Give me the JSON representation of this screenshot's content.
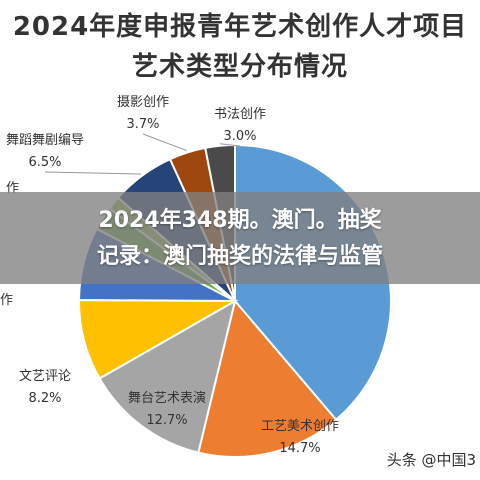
{
  "chart_data": {
    "type": "pie",
    "title": "2024年度申报青年艺术创作人才项目",
    "subtitle": "艺术类型分布情况",
    "slices": [
      {
        "label": "书法创作",
        "percent_label": "3.0%",
        "value": 3.0,
        "color": "#4a4a4a"
      },
      {
        "label": "",
        "percent_label": "",
        "value": 38.0,
        "color": "#5b9bd5"
      },
      {
        "label": "工艺美术创作",
        "percent_label": "14.7%",
        "value": 14.7,
        "color": "#ed7d31"
      },
      {
        "label": "舞台艺术表演",
        "percent_label": "12.7%",
        "value": 12.7,
        "color": "#a5a5a5"
      },
      {
        "label": "文艺评论",
        "percent_label": "8.2%",
        "value": 8.2,
        "color": "#ffc000"
      },
      {
        "label": "",
        "percent_label": "",
        "value": 7.4,
        "color": "#4472c4"
      },
      {
        "label": "",
        "percent_label": "",
        "value": 2.4,
        "color": "#70ad47"
      },
      {
        "label": "",
        "percent_label": "",
        "value": 1.4,
        "color": "#9bbb59"
      },
      {
        "label": "舞蹈舞剧编导",
        "percent_label": "6.5%",
        "value": 6.5,
        "color": "#264478"
      },
      {
        "label": "摄影创作",
        "percent_label": "3.7%",
        "value": 3.7,
        "color": "#9e480e"
      }
    ],
    "partial_labels": [
      "作",
      "作"
    ]
  },
  "overlay": {
    "line1": "2024年348期。澳门。抽奖",
    "line2": "记录：澳门抽奖的法律与监管"
  },
  "watermark": "头条 @中国3"
}
